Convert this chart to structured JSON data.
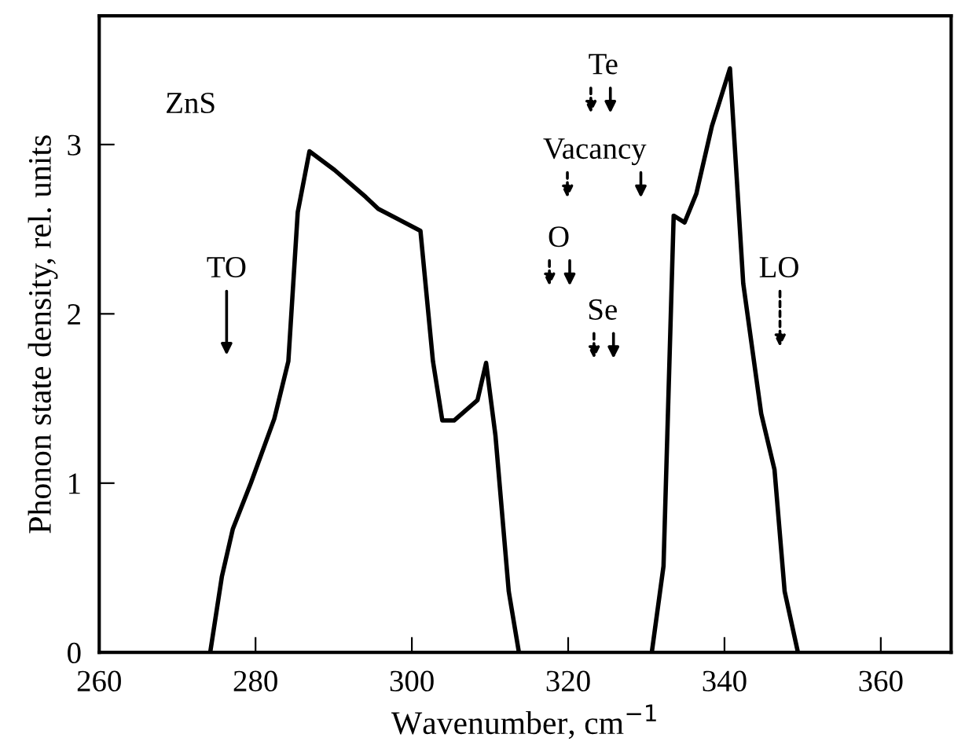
{
  "chart_data": {
    "type": "line",
    "xlabel": "Wavenumber, cm$^{−1}$",
    "ylabel": "Phonon state density, rel. units",
    "series": [
      {
        "color": "#000000",
        "x": [
          274.2,
          275.7,
          277.1,
          279.4,
          282.4,
          284.2,
          285.4,
          286.9,
          290.1,
          294.1,
          295.7,
          301.1,
          302.7,
          303.9,
          305.4,
          308.4,
          309.5,
          310.7,
          312.4,
          313.7
        ],
        "values": [
          0,
          0.45,
          0.73,
          1.0,
          1.38,
          1.72,
          2.6,
          2.96,
          2.85,
          2.69,
          2.62,
          2.49,
          1.72,
          1.37,
          1.37,
          1.49,
          1.71,
          1.28,
          0.36,
          0
        ]
      },
      {
        "color": "#000000",
        "x": [
          330.7,
          332.2,
          333.5,
          334.9,
          336.4,
          338.4,
          340.7,
          342.4,
          344.7,
          346.4,
          347.7,
          349.4
        ],
        "values": [
          0,
          0.51,
          2.58,
          2.54,
          2.71,
          3.11,
          3.45,
          2.18,
          1.41,
          1.08,
          0.36,
          0
        ]
      }
    ],
    "annotations": [
      "ZnS",
      "TO",
      "Te",
      "Vacancy",
      "O",
      "Se",
      "LO"
    ],
    "xlim": [
      260,
      369
    ],
    "ylim": [
      0,
      3.76
    ],
    "xticks": [
      260,
      280,
      300,
      320,
      340,
      360
    ],
    "yticks": [
      0,
      1,
      2,
      3
    ],
    "grid": false,
    "marker": "none",
    "line_style": "solid"
  }
}
